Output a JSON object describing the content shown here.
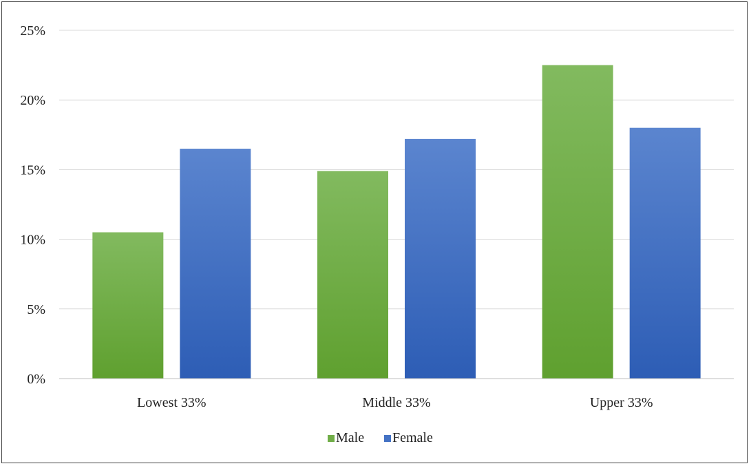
{
  "chart_data": {
    "type": "bar",
    "categories": [
      "Lowest 33%",
      "Middle 33%",
      "Upper 33%"
    ],
    "series": [
      {
        "name": "Male",
        "values": [
          10.5,
          14.9,
          22.5
        ],
        "color": "#70AD47"
      },
      {
        "name": "Female",
        "values": [
          16.5,
          17.2,
          18.0
        ],
        "color": "#4472C4"
      }
    ],
    "ylim": [
      0,
      25
    ],
    "yticks": [
      0,
      5,
      10,
      15,
      20,
      25
    ],
    "ytick_labels": [
      "0%",
      "5%",
      "10%",
      "15%",
      "20%",
      "25%"
    ],
    "grid": true,
    "legend_position": "bottom"
  }
}
